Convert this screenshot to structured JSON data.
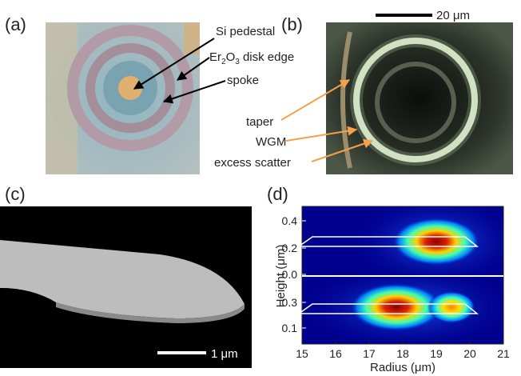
{
  "panel_a": {
    "label": "(a)",
    "annotations": {
      "si_pedestal": "Si pedestal",
      "disk_edge": {
        "parts": [
          "Er",
          "2",
          "O",
          "3",
          " disk edge"
        ]
      },
      "spoke": "spoke"
    }
  },
  "panel_b": {
    "label": "(b)",
    "scale_bar": "20 μm",
    "annotations": {
      "taper": "taper",
      "wgm": "WGM",
      "excess_scatter": "excess scatter"
    }
  },
  "panel_c": {
    "label": "(c)",
    "scale_bar": "1 μm"
  },
  "panel_d": {
    "label": "(d)",
    "x_axis": {
      "label": "Radius (μm)",
      "ticks": [
        "15",
        "16",
        "17",
        "18",
        "19",
        "20",
        "21"
      ]
    },
    "y_axis": {
      "label": "Height (μm)",
      "upper_ticks": [
        "0.4",
        "0.2",
        "0.0"
      ],
      "lower_ticks": [
        "0.3",
        "0.1"
      ]
    }
  }
}
